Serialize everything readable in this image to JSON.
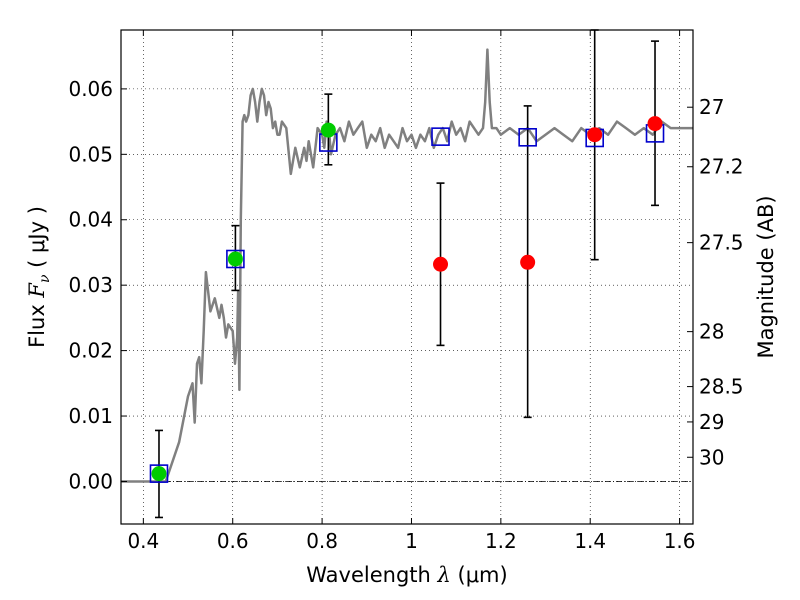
{
  "chart_data": {
    "type": "scatter",
    "title": "",
    "xlabel": "Wavelength  λ (μm)",
    "ylabel": "Flux  F_ν  ( μJy )",
    "ylabel_parts": {
      "prefix": "Flux  ",
      "symbol": "F",
      "subscript": "ν",
      "unit": "  ( μJy )"
    },
    "xlabel_parts": {
      "prefix": "Wavelength  ",
      "symbol": "λ",
      "unit": " (μm)"
    },
    "y2label": "Magnitude (AB)",
    "xlim": [
      0.35,
      1.63
    ],
    "ylim": [
      -0.0065,
      0.069
    ],
    "grid": true,
    "x_ticks": [
      0.4,
      0.6,
      0.8,
      1.0,
      1.2,
      1.4,
      1.6
    ],
    "x_tick_labels": [
      "0.4",
      "0.6",
      "0.8",
      "1",
      "1.2",
      "1.4",
      "1.6"
    ],
    "y_ticks": [
      0.0,
      0.01,
      0.02,
      0.03,
      0.04,
      0.05,
      0.06
    ],
    "y_tick_labels": [
      "0.00",
      "0.01",
      "0.02",
      "0.03",
      "0.04",
      "0.05",
      "0.06"
    ],
    "y2_ticks": [
      {
        "flux": 0.0572,
        "label": "27"
      },
      {
        "flux": 0.0481,
        "label": "27.2"
      },
      {
        "flux": 0.0365,
        "label": "27.5"
      },
      {
        "flux": 0.0229,
        "label": "28"
      },
      {
        "flux": 0.0145,
        "label": "28.5"
      },
      {
        "flux": 0.0091,
        "label": "29"
      },
      {
        "flux": 0.0037,
        "label": "30"
      }
    ],
    "colors": {
      "model": "#808080",
      "green": "#00cc00",
      "red": "#ff0000",
      "squares": "#0000cc",
      "errorbar": "#000000"
    },
    "model_spectrum": {
      "x": [
        0.35,
        0.45,
        0.46,
        0.48,
        0.5,
        0.51,
        0.515,
        0.52,
        0.525,
        0.53,
        0.535,
        0.54,
        0.55,
        0.56,
        0.57,
        0.575,
        0.58,
        0.585,
        0.59,
        0.6,
        0.605,
        0.61,
        0.612,
        0.615,
        0.618,
        0.622,
        0.626,
        0.63,
        0.635,
        0.64,
        0.645,
        0.65,
        0.655,
        0.66,
        0.665,
        0.67,
        0.675,
        0.68,
        0.685,
        0.69,
        0.695,
        0.7,
        0.705,
        0.71,
        0.72,
        0.73,
        0.74,
        0.75,
        0.76,
        0.765,
        0.77,
        0.78,
        0.79,
        0.8,
        0.805,
        0.81,
        0.815,
        0.82,
        0.83,
        0.84,
        0.85,
        0.86,
        0.87,
        0.88,
        0.89,
        0.9,
        0.91,
        0.92,
        0.93,
        0.94,
        0.95,
        0.96,
        0.97,
        0.98,
        0.99,
        1.0,
        1.01,
        1.02,
        1.03,
        1.04,
        1.05,
        1.06,
        1.07,
        1.08,
        1.09,
        1.1,
        1.11,
        1.12,
        1.13,
        1.14,
        1.15,
        1.16,
        1.165,
        1.17,
        1.175,
        1.18,
        1.19,
        1.2,
        1.22,
        1.24,
        1.26,
        1.28,
        1.3,
        1.32,
        1.34,
        1.36,
        1.38,
        1.4,
        1.42,
        1.44,
        1.46,
        1.48,
        1.5,
        1.52,
        1.54,
        1.56,
        1.58,
        1.6,
        1.63
      ],
      "y": [
        0.0,
        0.0,
        0.002,
        0.006,
        0.013,
        0.015,
        0.009,
        0.018,
        0.019,
        0.015,
        0.023,
        0.032,
        0.026,
        0.028,
        0.025,
        0.027,
        0.025,
        0.022,
        0.024,
        0.023,
        0.018,
        0.022,
        0.029,
        0.014,
        0.04,
        0.055,
        0.056,
        0.055,
        0.056,
        0.059,
        0.06,
        0.058,
        0.055,
        0.058,
        0.06,
        0.059,
        0.056,
        0.058,
        0.057,
        0.054,
        0.055,
        0.053,
        0.053,
        0.055,
        0.054,
        0.047,
        0.051,
        0.048,
        0.051,
        0.049,
        0.052,
        0.048,
        0.054,
        0.053,
        0.051,
        0.055,
        0.054,
        0.05,
        0.053,
        0.054,
        0.052,
        0.055,
        0.053,
        0.054,
        0.055,
        0.051,
        0.053,
        0.052,
        0.054,
        0.051,
        0.053,
        0.052,
        0.051,
        0.054,
        0.052,
        0.053,
        0.051,
        0.053,
        0.052,
        0.054,
        0.051,
        0.053,
        0.054,
        0.052,
        0.055,
        0.053,
        0.054,
        0.052,
        0.055,
        0.054,
        0.053,
        0.054,
        0.058,
        0.066,
        0.058,
        0.054,
        0.054,
        0.053,
        0.054,
        0.053,
        0.054,
        0.052,
        0.053,
        0.054,
        0.053,
        0.052,
        0.054,
        0.053,
        0.054,
        0.053,
        0.055,
        0.054,
        0.053,
        0.054,
        0.053,
        0.055,
        0.054,
        0.054,
        0.054
      ]
    },
    "green_points": [
      {
        "x": 0.435,
        "y": 0.0012,
        "yerr_low": -0.0055,
        "yerr_high": 0.0078
      },
      {
        "x": 0.606,
        "y": 0.034,
        "yerr_low": 0.0292,
        "yerr_high": 0.0391
      },
      {
        "x": 0.814,
        "y": 0.0537,
        "yerr_low": 0.0484,
        "yerr_high": 0.0592
      }
    ],
    "red_points": [
      {
        "x": 1.065,
        "y": 0.0332,
        "yerr_low": 0.0208,
        "yerr_high": 0.0456
      },
      {
        "x": 1.26,
        "y": 0.0335,
        "yerr_low": 0.0098,
        "yerr_high": 0.0574
      },
      {
        "x": 1.41,
        "y": 0.053,
        "yerr_low": 0.0339,
        "yerr_high": 0.069
      },
      {
        "x": 1.545,
        "y": 0.0547,
        "yerr_low": 0.0422,
        "yerr_high": 0.0673
      }
    ],
    "model_photometry_squares": [
      {
        "x": 0.435,
        "y": 0.0012
      },
      {
        "x": 0.606,
        "y": 0.034
      },
      {
        "x": 0.814,
        "y": 0.0518
      },
      {
        "x": 1.065,
        "y": 0.0527
      },
      {
        "x": 1.26,
        "y": 0.0526
      },
      {
        "x": 1.41,
        "y": 0.0525
      },
      {
        "x": 1.545,
        "y": 0.0532
      }
    ]
  }
}
